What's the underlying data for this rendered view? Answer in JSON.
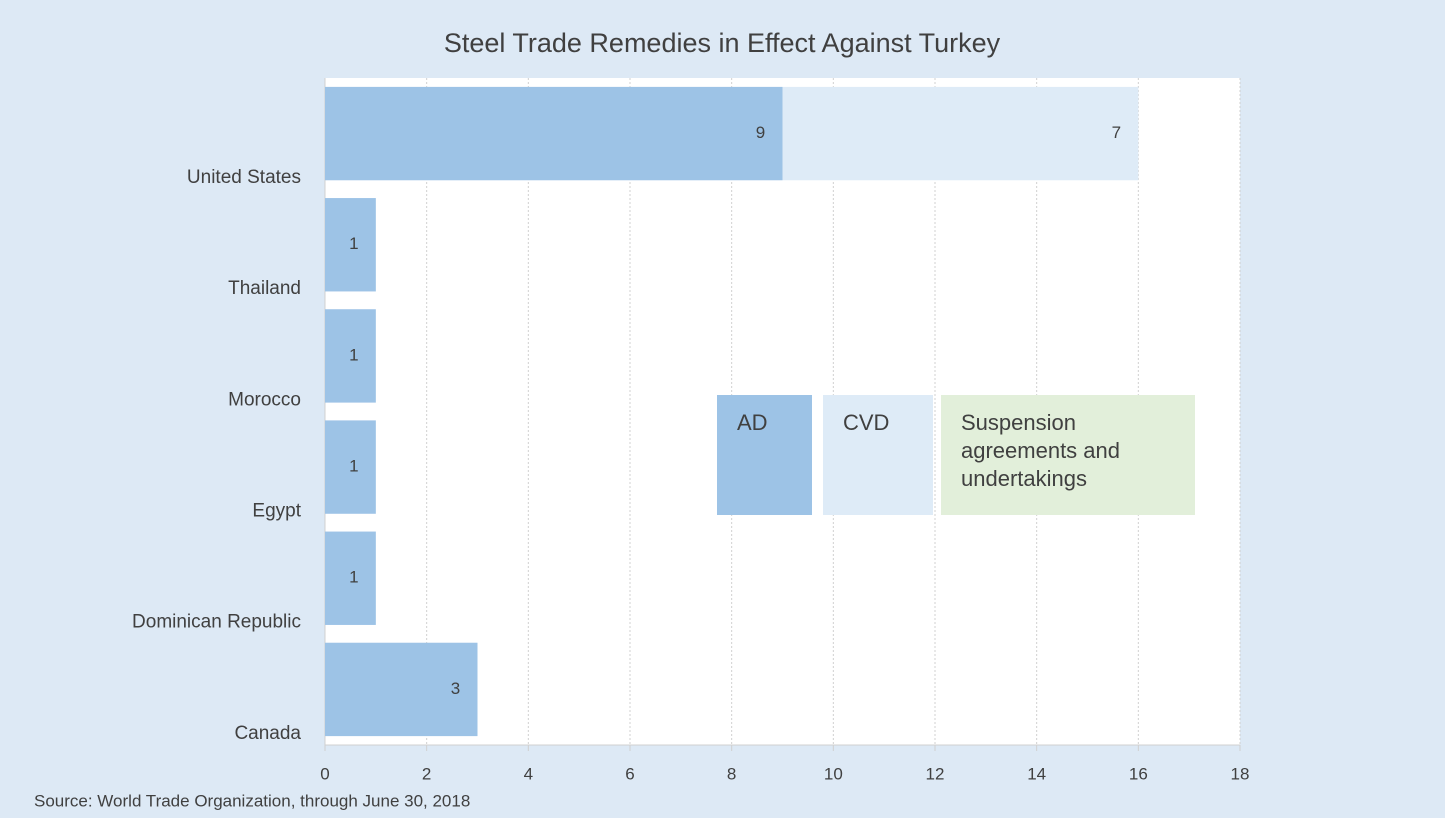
{
  "chart_data": {
    "type": "stacked-bar-horizontal",
    "title": "Steel Trade Remedies in Effect Against Turkey",
    "categories": [
      "United States",
      "Thailand",
      "Morocco",
      "Egypt",
      "Dominican Republic",
      "Canada"
    ],
    "series": [
      {
        "name": "AD",
        "color": "#9dc3e6",
        "values": [
          9,
          1,
          1,
          1,
          1,
          3
        ]
      },
      {
        "name": "CVD",
        "color": "#deebf7",
        "values": [
          7,
          null,
          null,
          null,
          null,
          null
        ]
      },
      {
        "name": "Suspension agreements and undertakings",
        "color": "#e2efda",
        "values": [
          null,
          null,
          null,
          null,
          null,
          null
        ]
      }
    ],
    "xlim": [
      0,
      18
    ],
    "xticks": [
      0,
      2,
      4,
      6,
      8,
      10,
      12,
      14,
      16,
      18
    ],
    "grid": true,
    "source": "Source: World Trade Organization, through June 30, 2018"
  }
}
